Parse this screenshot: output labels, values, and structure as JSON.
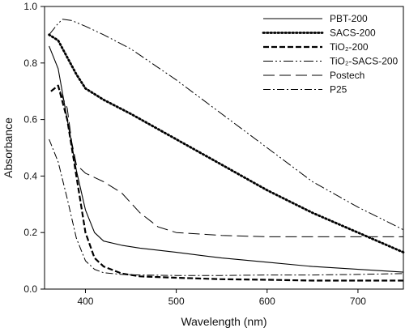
{
  "chart_data": {
    "type": "line",
    "xlabel": "Wavelength (nm)",
    "ylabel": "Absorbance",
    "xlim": [
      355,
      750
    ],
    "ylim": [
      0.0,
      1.0
    ],
    "xticks": [
      400,
      500,
      600,
      700
    ],
    "yticks": [
      0.0,
      0.2,
      0.4,
      0.6,
      0.8,
      1.0
    ],
    "xtick_labels": [
      "400",
      "500",
      "600",
      "700"
    ],
    "ytick_labels": [
      "0.0",
      "0.2",
      "0.4",
      "0.6",
      "0.8",
      "1.0"
    ],
    "grid": false,
    "legend_position": "top-right",
    "series": [
      {
        "name": "PBT-200",
        "style": "solid",
        "color": "#000000",
        "x": [
          360,
          370,
          380,
          390,
          400,
          410,
          420,
          440,
          460,
          500,
          550,
          600,
          650,
          700,
          750
        ],
        "y": [
          0.86,
          0.78,
          0.6,
          0.42,
          0.28,
          0.2,
          0.17,
          0.155,
          0.145,
          0.13,
          0.11,
          0.095,
          0.08,
          0.07,
          0.06
        ]
      },
      {
        "name": "SACS-200",
        "style": "dotted",
        "color": "#000000",
        "x": [
          360,
          370,
          380,
          390,
          400,
          420,
          450,
          500,
          550,
          600,
          650,
          700,
          750
        ],
        "y": [
          0.9,
          0.88,
          0.82,
          0.76,
          0.71,
          0.67,
          0.62,
          0.53,
          0.44,
          0.35,
          0.27,
          0.2,
          0.13
        ]
      },
      {
        "name": "TiO₂-200",
        "style": "dashed",
        "color": "#000000",
        "x": [
          362,
          370,
          380,
          390,
          400,
          410,
          420,
          440,
          460,
          500,
          550,
          600,
          650,
          700,
          750
        ],
        "y": [
          0.7,
          0.72,
          0.6,
          0.4,
          0.2,
          0.11,
          0.08,
          0.055,
          0.045,
          0.04,
          0.035,
          0.033,
          0.03,
          0.03,
          0.03
        ]
      },
      {
        "name": "TiO₂-SACS-200",
        "style": "dash-dot-dot",
        "color": "#000000",
        "x": [
          360,
          370,
          375,
          385,
          400,
          420,
          450,
          500,
          550,
          600,
          650,
          700,
          750
        ],
        "y": [
          0.9,
          0.94,
          0.955,
          0.95,
          0.93,
          0.9,
          0.85,
          0.74,
          0.62,
          0.5,
          0.38,
          0.29,
          0.21
        ]
      },
      {
        "name": "Postech",
        "style": "long-dash",
        "color": "#000000",
        "x": [
          372,
          380,
          385,
          390,
          400,
          420,
          440,
          460,
          480,
          500,
          550,
          600,
          650,
          700,
          750
        ],
        "y": [
          0.7,
          0.64,
          0.52,
          0.44,
          0.41,
          0.38,
          0.34,
          0.27,
          0.22,
          0.2,
          0.19,
          0.185,
          0.185,
          0.185,
          0.185
        ]
      },
      {
        "name": "P25",
        "style": "dash-dot",
        "color": "#000000",
        "x": [
          360,
          370,
          380,
          390,
          400,
          410,
          420,
          440,
          460,
          500,
          550,
          600,
          650,
          700,
          750
        ],
        "y": [
          0.53,
          0.45,
          0.32,
          0.18,
          0.1,
          0.07,
          0.058,
          0.052,
          0.05,
          0.048,
          0.048,
          0.05,
          0.05,
          0.052,
          0.055
        ]
      }
    ]
  }
}
